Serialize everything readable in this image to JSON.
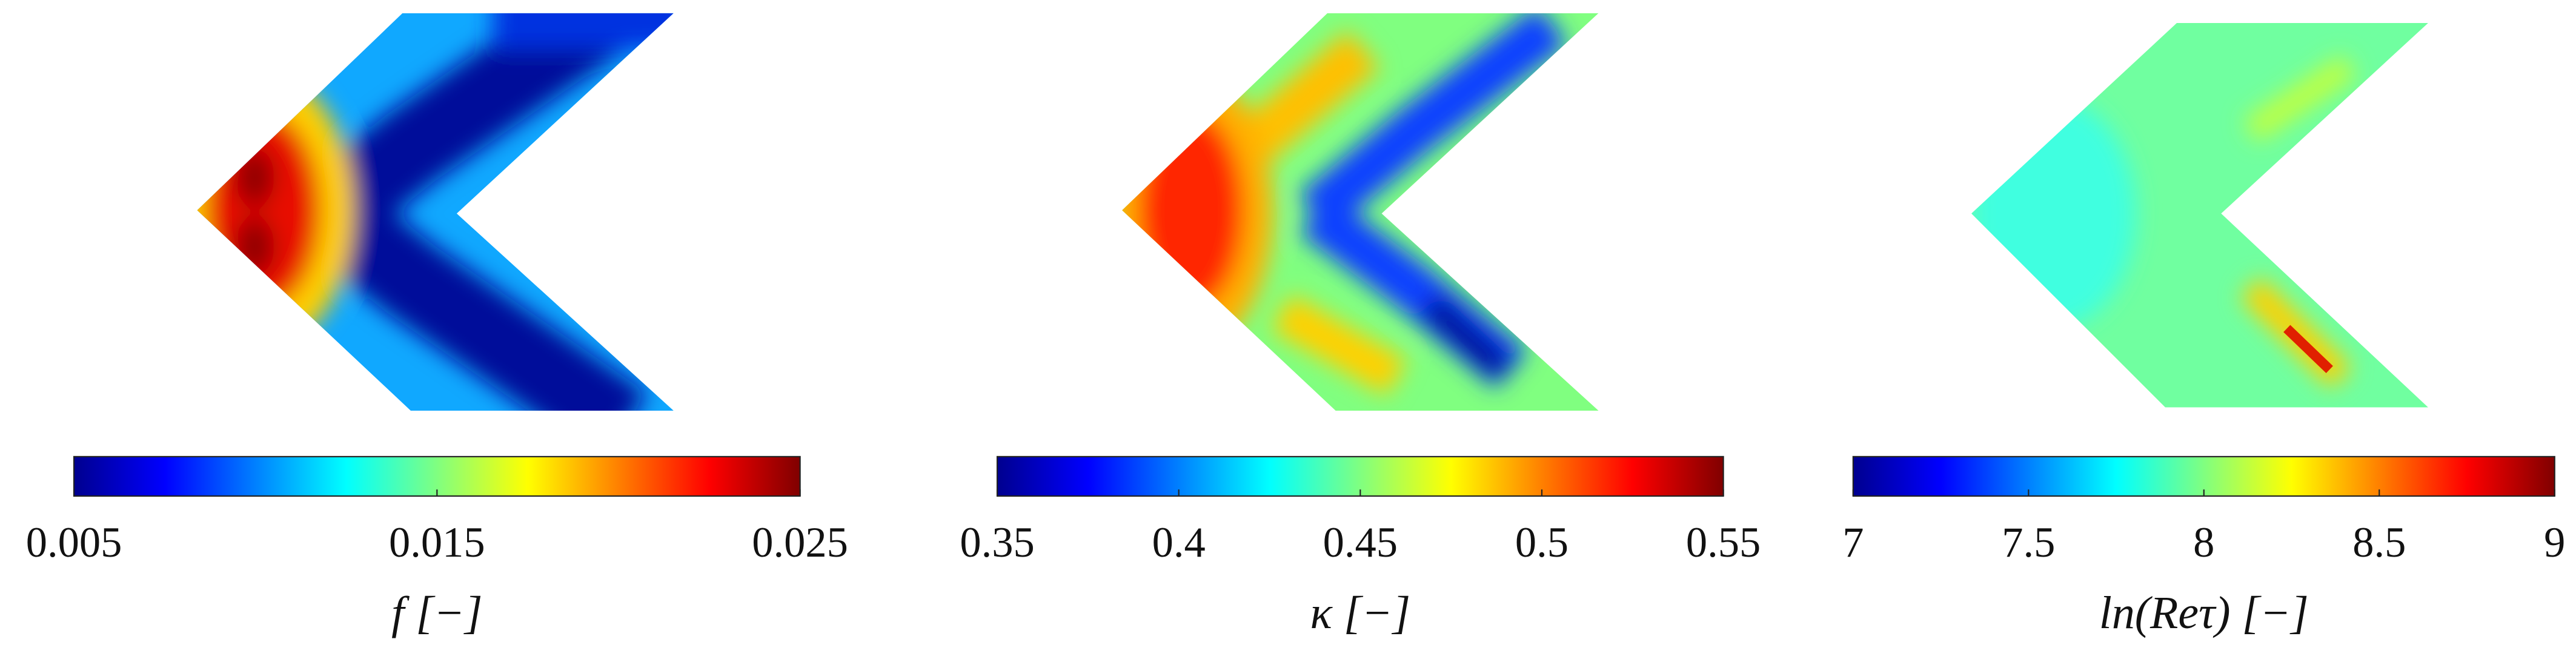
{
  "chart_data": [
    {
      "type": "heatmap",
      "colormap": "jet",
      "clim": [
        0.005,
        0.025
      ],
      "cticks": [
        0.005,
        0.015,
        0.025
      ],
      "colorbar_label": "f [−]"
    },
    {
      "type": "heatmap",
      "colormap": "jet",
      "clim": [
        0.35,
        0.55
      ],
      "cticks": [
        0.35,
        0.4,
        0.45,
        0.5,
        0.55
      ],
      "colorbar_label": "κ [−]"
    },
    {
      "type": "heatmap",
      "colormap": "jet",
      "clim": [
        7,
        9
      ],
      "cticks": [
        7,
        7.5,
        8,
        8.5,
        9
      ],
      "colorbar_label": "ln(Reτ) [−]"
    }
  ]
}
